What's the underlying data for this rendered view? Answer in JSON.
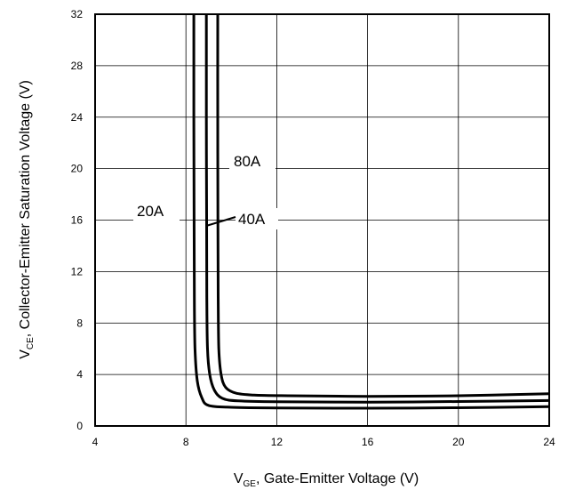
{
  "chart_data": {
    "type": "line",
    "xlabel": {
      "main": "V",
      "sub": "GE",
      "rest": ", Gate-Emitter Voltage (V)"
    },
    "ylabel": {
      "main": "V",
      "sub": "CE",
      "rest": ", Collector-Emitter Saturation Voltage (V)"
    },
    "xlim": [
      4,
      24
    ],
    "ylim": [
      0,
      32
    ],
    "xticks": [
      "4",
      "8",
      "12",
      "16",
      "20",
      "24"
    ],
    "yticks": [
      "0",
      "4",
      "8",
      "12",
      "16",
      "20",
      "24",
      "28",
      "32"
    ],
    "grid": true,
    "series": [
      {
        "name": "20A",
        "x": [
          8.35,
          8.35,
          8.36,
          8.37,
          8.4,
          8.5,
          8.7,
          9.0,
          10.0,
          12.0,
          16.0,
          20.0,
          24.0
        ],
        "y": [
          32,
          24,
          16,
          10,
          6,
          3.5,
          2.2,
          1.6,
          1.45,
          1.4,
          1.38,
          1.42,
          1.5
        ]
      },
      {
        "name": "40A",
        "x": [
          8.9,
          8.9,
          8.91,
          8.92,
          8.95,
          9.05,
          9.25,
          9.6,
          10.3,
          12.0,
          16.0,
          20.0,
          24.0
        ],
        "y": [
          32,
          24,
          16,
          10,
          6,
          4.0,
          2.8,
          2.15,
          1.95,
          1.88,
          1.85,
          1.9,
          1.98
        ]
      },
      {
        "name": "80A",
        "x": [
          9.4,
          9.4,
          9.41,
          9.42,
          9.45,
          9.55,
          9.75,
          10.2,
          11.0,
          12.5,
          16.0,
          20.0,
          24.0
        ],
        "y": [
          32,
          24,
          16,
          10,
          6,
          4.0,
          3.0,
          2.55,
          2.4,
          2.35,
          2.3,
          2.35,
          2.5
        ]
      }
    ]
  }
}
